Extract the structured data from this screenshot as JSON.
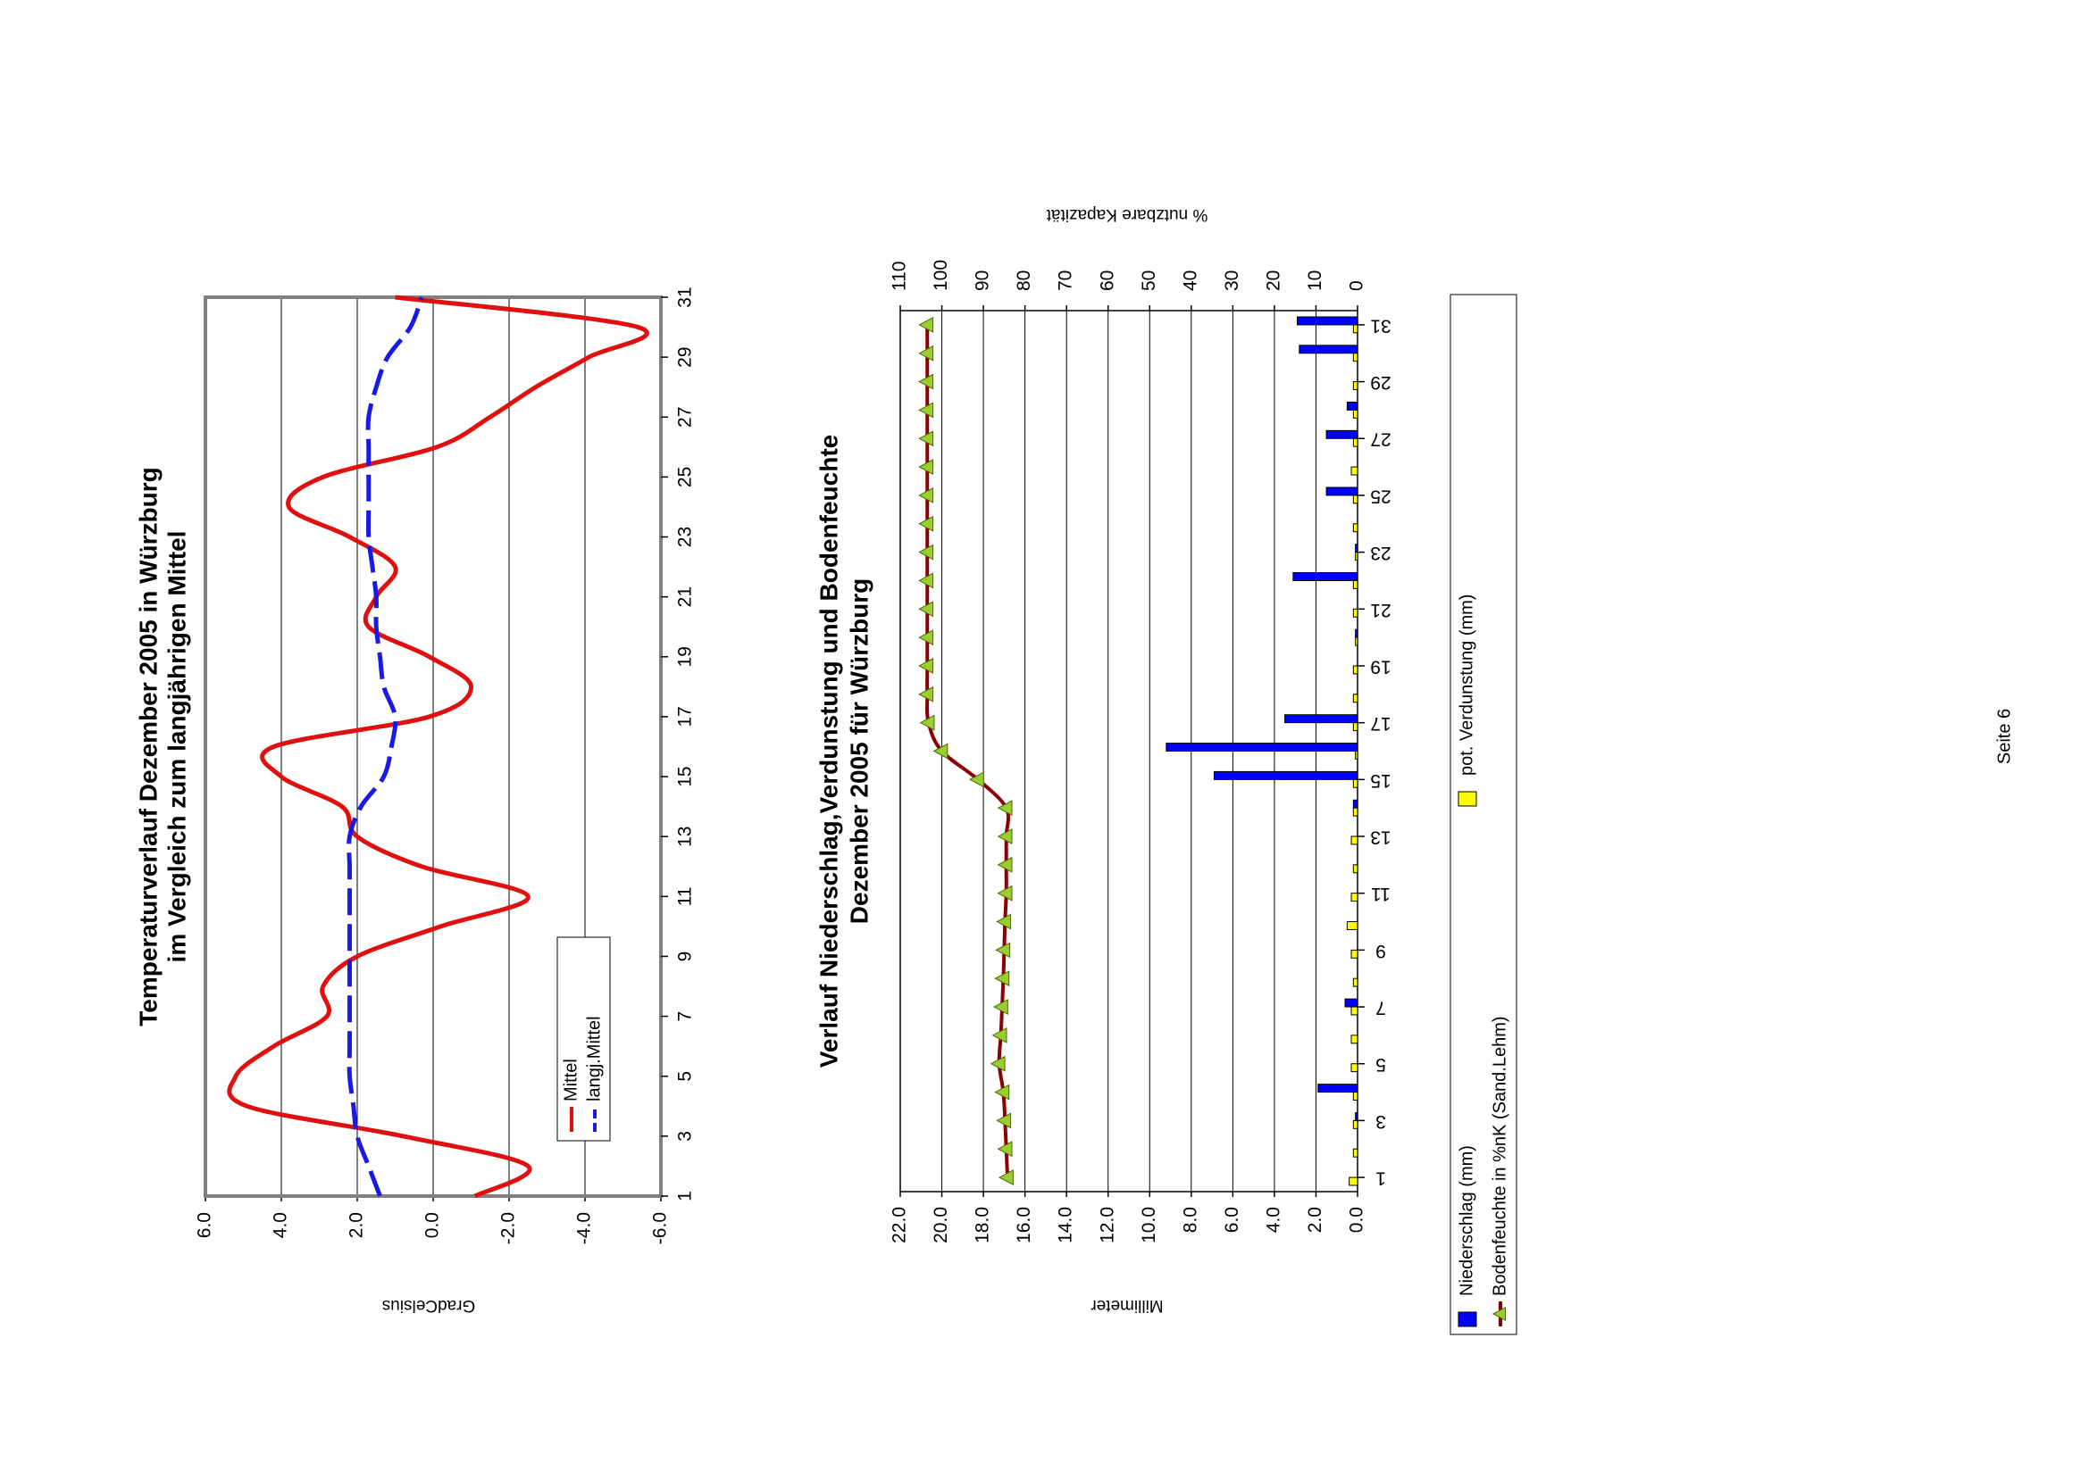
{
  "chart_data": [
    {
      "type": "line",
      "title": [
        "Temperaturverlauf Dezember 2005 in Würzburg",
        "im Vergleich zum langjährigen Mittel"
      ],
      "y_label": "GradCelsius",
      "x": [
        1,
        2,
        3,
        4,
        5,
        6,
        7,
        8,
        9,
        10,
        11,
        12,
        13,
        14,
        15,
        16,
        17,
        18,
        19,
        20,
        21,
        22,
        23,
        24,
        25,
        26,
        27,
        28,
        29,
        30,
        31
      ],
      "xlim": [
        1,
        31
      ],
      "xticks": [
        1,
        3,
        5,
        7,
        9,
        11,
        13,
        15,
        17,
        19,
        21,
        23,
        25,
        27,
        29,
        31
      ],
      "ylim": [
        -6,
        6
      ],
      "yticks": [
        {
          "value": 6,
          "label": "6.0"
        },
        {
          "value": 4,
          "label": "4.0"
        },
        {
          "value": 2,
          "label": "2.0"
        },
        {
          "value": 0,
          "label": "0.0"
        },
        {
          "value": -2,
          "label": "-2.0"
        },
        {
          "value": -4,
          "label": "-4.0"
        },
        {
          "value": -6,
          "label": "-6.0"
        }
      ],
      "grid": true,
      "series": [
        {
          "name": "Mittel",
          "color": "#e01010",
          "line_style": "solid",
          "values": [
            -1.1,
            -2.5,
            0.8,
            4.9,
            5.2,
            4.2,
            2.8,
            2.9,
            2.0,
            -0.2,
            -2.5,
            0.3,
            2.0,
            2.4,
            4.0,
            4.2,
            0.1,
            -1.0,
            0.1,
            1.7,
            1.5,
            1.0,
            2.2,
            3.8,
            2.9,
            -0.1,
            -1.5,
            -2.7,
            -4.1,
            -5.4,
            1.0
          ]
        },
        {
          "name": "langj.Mittel",
          "color": "#1a1ae6",
          "line_style": "dashed",
          "values": [
            1.4,
            1.7,
            2.0,
            2.1,
            2.2,
            2.2,
            2.2,
            2.2,
            2.2,
            2.2,
            2.2,
            2.2,
            2.2,
            1.9,
            1.3,
            1.1,
            1.0,
            1.3,
            1.4,
            1.5,
            1.5,
            1.6,
            1.7,
            1.7,
            1.7,
            1.7,
            1.7,
            1.5,
            1.2,
            0.6,
            0.3
          ]
        }
      ]
    },
    {
      "type": "bar",
      "title": [
        "Verlauf Niederschlag,Verdunstung und Bodenfeuchte",
        "Dezember 2005 für Würzburg"
      ],
      "y_label": "Millimeter",
      "y2_label": "% nutzbare Kapazität",
      "x": [
        1,
        2,
        3,
        4,
        5,
        6,
        7,
        8,
        9,
        10,
        11,
        12,
        13,
        14,
        15,
        16,
        17,
        18,
        19,
        20,
        21,
        22,
        23,
        24,
        25,
        26,
        27,
        28,
        29,
        30,
        31
      ],
      "xlim": [
        0.5,
        31.5
      ],
      "xticks": [
        1,
        3,
        5,
        7,
        9,
        11,
        13,
        15,
        17,
        19,
        21,
        23,
        25,
        27,
        29,
        31
      ],
      "ylim": [
        0,
        22
      ],
      "yticks": [
        {
          "value": 0,
          "label": "0.0"
        },
        {
          "value": 2,
          "label": "2.0"
        },
        {
          "value": 4,
          "label": "4.0"
        },
        {
          "value": 6,
          "label": "6.0"
        },
        {
          "value": 8,
          "label": "8.0"
        },
        {
          "value": 10,
          "label": "10.0"
        },
        {
          "value": 12,
          "label": "12.0"
        },
        {
          "value": 14,
          "label": "14.0"
        },
        {
          "value": 16,
          "label": "16.0"
        },
        {
          "value": 18,
          "label": "18.0"
        },
        {
          "value": 20,
          "label": "20.0"
        },
        {
          "value": 22,
          "label": "22.0"
        }
      ],
      "y2lim": [
        0,
        110
      ],
      "y2ticks": [
        0,
        10,
        20,
        30,
        40,
        50,
        60,
        70,
        80,
        90,
        100,
        110
      ],
      "grid": true,
      "series": [
        {
          "name": "Niederschlag (mm)",
          "type": "bar",
          "color": "#0000ff",
          "values": [
            0,
            0,
            0.1,
            1.9,
            0,
            0,
            0.6,
            0,
            0,
            0,
            0,
            0,
            0,
            0.2,
            6.9,
            9.2,
            3.5,
            0,
            0,
            0.1,
            0,
            3.1,
            0.1,
            0,
            1.5,
            0,
            1.5,
            0.5,
            0,
            2.8,
            2.9
          ]
        },
        {
          "name": "Bodenfeuchte in %nK (Sand.Lehm)",
          "type": "line",
          "axis": "y2",
          "color": "#8b0000",
          "marker": "triangle",
          "marker_color": "#9acd32",
          "values": [
            84.2,
            84.5,
            84.8,
            85.2,
            86.2,
            85.8,
            85.5,
            85.2,
            85.0,
            84.8,
            84.5,
            84.5,
            84.5,
            84.5,
            91.3,
            100,
            103.2,
            103.5,
            103.5,
            103.5,
            103.5,
            103.5,
            103.5,
            103.5,
            103.5,
            103.5,
            103.5,
            103.5,
            103.5,
            103.5,
            103.5
          ]
        },
        {
          "name": "pot. Verdunstung (mm)",
          "type": "bar",
          "color": "#ffff00",
          "values": [
            0.4,
            0.2,
            0.2,
            0.2,
            0.3,
            0.3,
            0.3,
            0.2,
            0.3,
            0.5,
            0.3,
            0.2,
            0.3,
            0.2,
            0.2,
            0.1,
            0.2,
            0.2,
            0.2,
            0.1,
            0.2,
            0.2,
            0.1,
            0.2,
            0.2,
            0.3,
            0.2,
            0.2,
            0.2,
            0.2,
            0.2
          ]
        }
      ]
    }
  ],
  "page_label": "Seite 6"
}
